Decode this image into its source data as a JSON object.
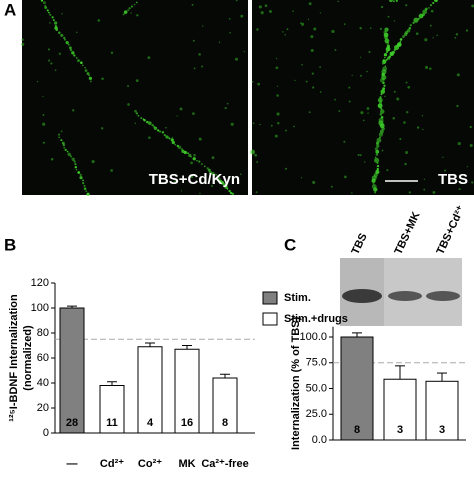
{
  "panels": {
    "a": {
      "label": "A",
      "images": [
        {
          "label": "TBS+Cd/Kyn"
        },
        {
          "label": "TBS"
        }
      ]
    }
  },
  "chart_data": [
    {
      "type": "bar",
      "panel": "B",
      "ylabel": [
        "¹²⁵I-BDNF Internalization",
        "(normalized)"
      ],
      "categories": [
        "—",
        "Cd²⁺",
        "Co²⁺",
        "MK",
        "Ca²⁺-free"
      ],
      "values": [
        100,
        38,
        69,
        67,
        44
      ],
      "errors": [
        1.5,
        3,
        3,
        3,
        3
      ],
      "n": [
        28,
        11,
        4,
        16,
        8
      ],
      "colors": [
        "#808080",
        "#ffffff",
        "#ffffff",
        "#ffffff",
        "#ffffff"
      ],
      "legend": [
        {
          "name": "Stim.",
          "color": "#808080"
        },
        {
          "name": "Stim.+drugs",
          "color": "#ffffff"
        }
      ],
      "ref_line": 75,
      "ylim": [
        0,
        120
      ],
      "yticks": [
        0,
        20,
        40,
        60,
        80,
        100,
        120
      ]
    },
    {
      "type": "bar",
      "panel": "C",
      "ylabel": [
        "Internalization (% of TBS)"
      ],
      "categories": [
        "TBS",
        "TBS+MK",
        "TBS+Cd²⁺"
      ],
      "values": [
        100,
        59,
        57
      ],
      "errors": [
        4,
        13,
        8
      ],
      "n": [
        8,
        3,
        3
      ],
      "colors": [
        "#808080",
        "#ffffff",
        "#ffffff"
      ],
      "ref_line": 75,
      "ylim": [
        0,
        110
      ],
      "yticks": [
        {
          "value": 0,
          "label": "0.0"
        },
        {
          "value": 25,
          "label": "25.0"
        },
        {
          "value": 50,
          "label": "50.0"
        },
        {
          "value": 75,
          "label": "75.0"
        },
        {
          "value": 100,
          "label": "100.0"
        }
      ]
    }
  ]
}
